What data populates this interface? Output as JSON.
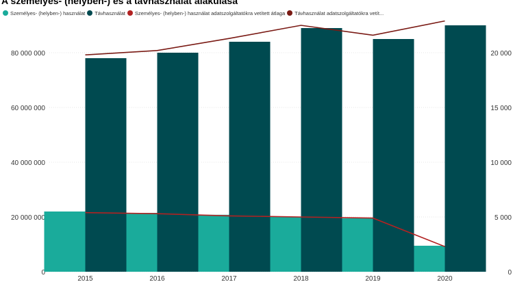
{
  "title": "A személyes- (helyben-) és a távhasználat alakulása",
  "legend": [
    {
      "label": "Személyes- (helyben-) használat",
      "color": "#1aab9b"
    },
    {
      "label": "Távhasználat",
      "color": "#004a50"
    },
    {
      "label": "Személyes- (helyben-) használat adatszolgáltatókra vetített átlaga",
      "color": "#b22222"
    },
    {
      "label": "Távhasználat adatszolgáltatókra vetít...",
      "color": "#7a1a14"
    }
  ],
  "chart_data": {
    "type": "bar",
    "categories": [
      "2015",
      "2016",
      "2017",
      "2018",
      "2019",
      "2020"
    ],
    "series": [
      {
        "name": "Személyes- (helyben-) használat",
        "kind": "bar",
        "axis": "left",
        "color": "#1aab9b",
        "values": [
          22000000,
          21500000,
          20800000,
          20000000,
          19500000,
          9500000
        ]
      },
      {
        "name": "Távhasználat",
        "kind": "bar",
        "axis": "left",
        "color": "#004a50",
        "values": [
          78000000,
          80000000,
          84000000,
          89000000,
          85000000,
          90000000
        ]
      },
      {
        "name": "Személyes- (helyben-) használat adatszolgáltatókra vetített átlaga",
        "kind": "line",
        "axis": "right",
        "color": "#b22222",
        "values": [
          5400,
          5300,
          5100,
          5000,
          4900,
          2300
        ]
      },
      {
        "name": "Távhasználat adatszolgáltatókra vetített átlaga",
        "kind": "line",
        "axis": "right",
        "color": "#7a1a14",
        "values": [
          19800,
          20200,
          21300,
          22500,
          21600,
          22900
        ]
      }
    ],
    "yleft": {
      "min": 0,
      "max": 90000000,
      "ticks": [
        {
          "v": 0,
          "label": "0"
        },
        {
          "v": 20000000,
          "label": "20 000 000"
        },
        {
          "v": 40000000,
          "label": "40 000 000"
        },
        {
          "v": 60000000,
          "label": "60 000 000"
        },
        {
          "v": 80000000,
          "label": "80 000 000"
        }
      ]
    },
    "yright": {
      "min": 0,
      "max": 22500,
      "ticks": [
        {
          "v": 0,
          "label": "0"
        },
        {
          "v": 5000,
          "label": "5 000"
        },
        {
          "v": 10000,
          "label": "10 000"
        },
        {
          "v": 15000,
          "label": "15 000"
        },
        {
          "v": 20000,
          "label": "20 000"
        }
      ]
    },
    "grid": true,
    "legend_position": "top-left"
  }
}
